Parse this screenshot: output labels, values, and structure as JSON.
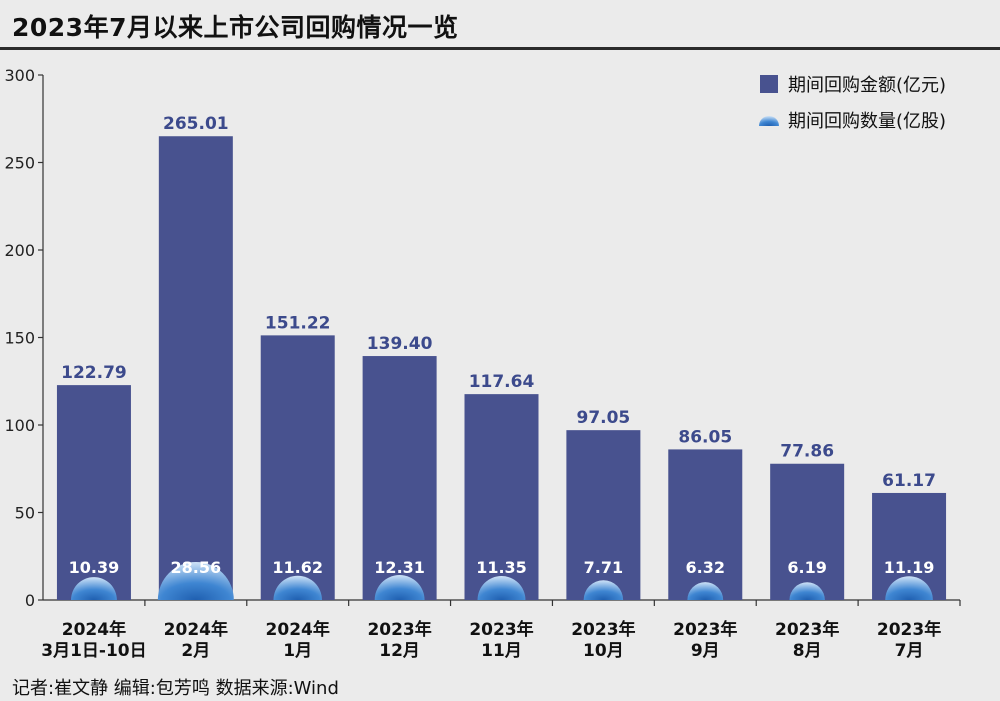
{
  "header": {
    "title": "2023年7月以来上市公司回购情况一览"
  },
  "footer": {
    "credit": "记者:崔文静   编辑:包芳鸣   数据来源:Wind"
  },
  "chart_data": {
    "type": "bar",
    "title": "2023年7月以来上市公司回购情况一览",
    "categories": [
      [
        "2024年",
        "3月1日-10日"
      ],
      [
        "2024年",
        "2月"
      ],
      [
        "2024年",
        "1月"
      ],
      [
        "2023年",
        "12月"
      ],
      [
        "2023年",
        "11月"
      ],
      [
        "2023年",
        "10月"
      ],
      [
        "2023年",
        "9月"
      ],
      [
        "2023年",
        "8月"
      ],
      [
        "2023年",
        "7月"
      ]
    ],
    "series": [
      {
        "name": "期间回购金额(亿元)",
        "values": [
          122.79,
          265.01,
          151.22,
          139.4,
          117.64,
          97.05,
          86.05,
          77.86,
          61.17
        ],
        "labels": [
          "122.79",
          "265.01",
          "151.22",
          "139.40",
          "117.64",
          "97.05",
          "86.05",
          "77.86",
          "61.17"
        ],
        "color": "#48528f",
        "label_color": "#3c4a8c"
      },
      {
        "name": "期间回购数量(亿股)",
        "values": [
          10.39,
          28.56,
          11.62,
          12.31,
          11.35,
          7.71,
          6.32,
          6.19,
          11.19
        ],
        "labels": [
          "10.39",
          "28.56",
          "11.62",
          "12.31",
          "11.35",
          "7.71",
          "6.32",
          "6.19",
          "11.19"
        ],
        "color": "#5b9bd5",
        "label_color": "#ffffff"
      }
    ],
    "ylim": [
      0,
      300
    ],
    "yticks": [
      "0",
      "50",
      "100",
      "150",
      "200",
      "250",
      "300"
    ],
    "grid": false,
    "legend_position": "top-right"
  }
}
